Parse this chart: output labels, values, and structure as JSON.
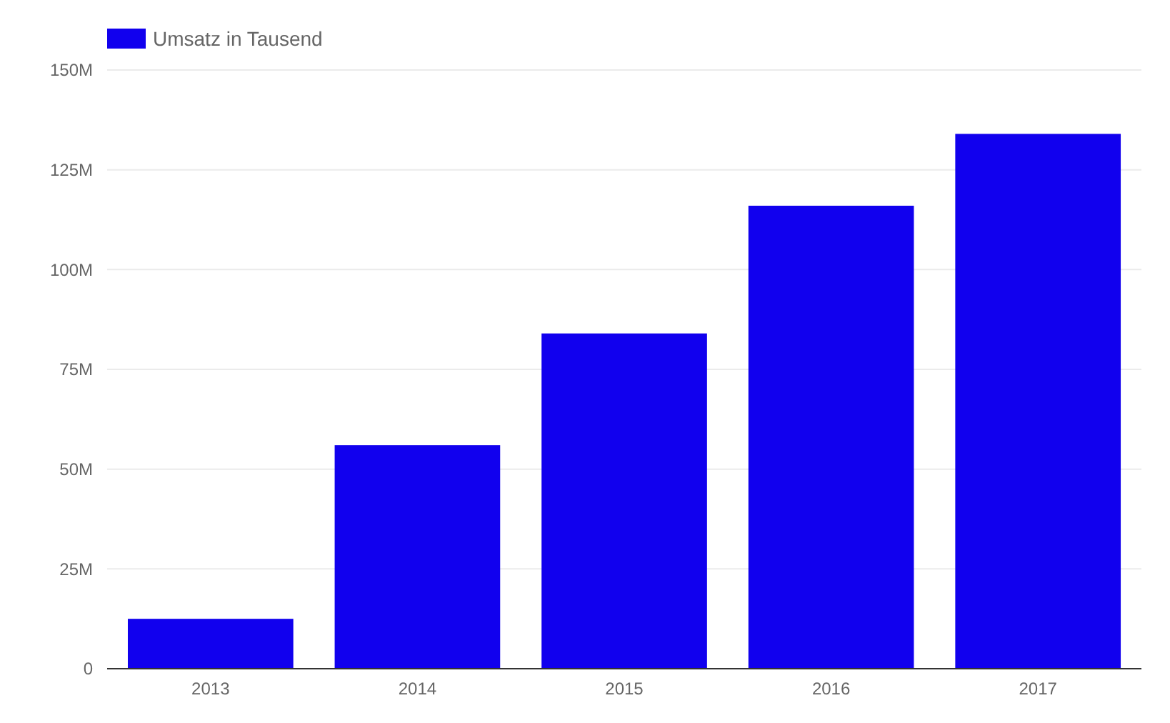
{
  "chart_data": {
    "type": "bar",
    "categories": [
      "2013",
      "2014",
      "2015",
      "2016",
      "2017"
    ],
    "series": [
      {
        "name": "Umsatz in Tausend",
        "color": "#1100ee",
        "values": [
          12.5,
          56,
          84,
          116,
          134
        ]
      }
    ],
    "ylim": [
      0,
      150
    ],
    "yticks": [
      {
        "value": 0,
        "label": "0"
      },
      {
        "value": 25,
        "label": "25M"
      },
      {
        "value": 50,
        "label": "50M"
      },
      {
        "value": 75,
        "label": "75M"
      },
      {
        "value": 100,
        "label": "100M"
      },
      {
        "value": 125,
        "label": "125M"
      },
      {
        "value": 150,
        "label": "150M"
      }
    ],
    "grid": "y",
    "legend": "top left"
  }
}
